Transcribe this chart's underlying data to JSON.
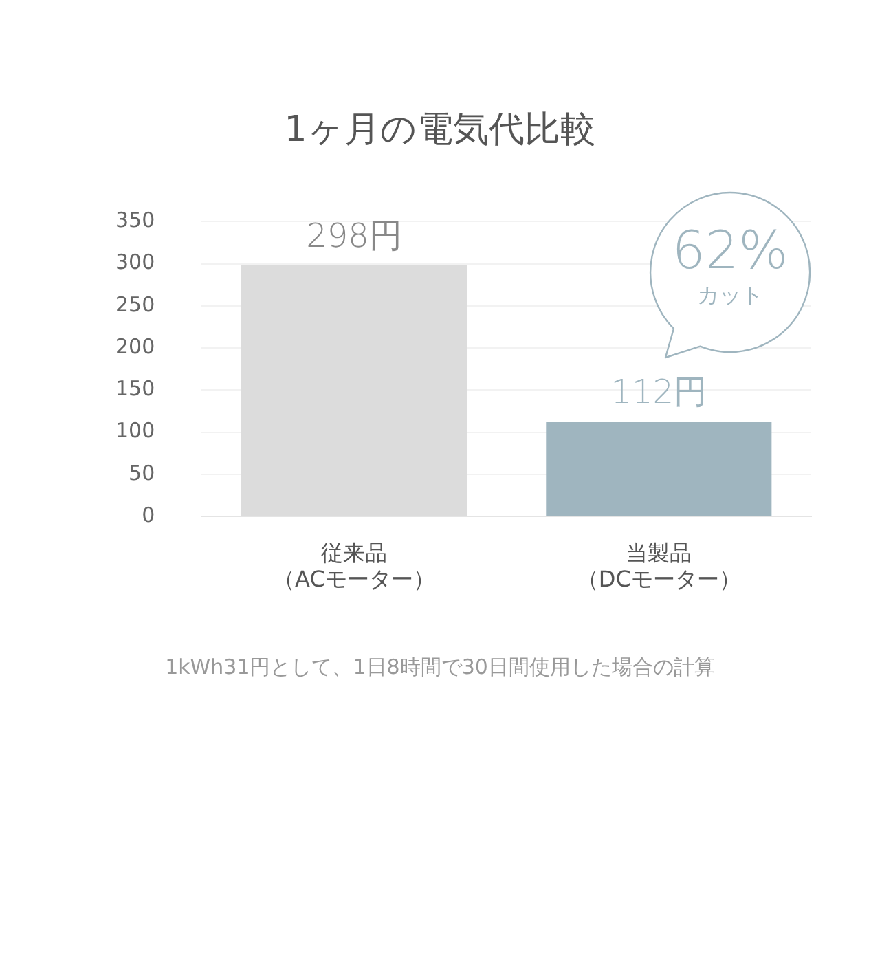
{
  "chart_data": {
    "type": "bar",
    "title": "1ヶ月の電気代比較",
    "categories": [
      "従来品（ACモーター）",
      "当製品（DCモーター）"
    ],
    "values": [
      298,
      112
    ],
    "colors": [
      "#dcdcdc",
      "#9fb5bf"
    ],
    "value_labels": [
      "298円",
      "112円"
    ],
    "ylim": [
      0,
      350
    ],
    "yticks": [
      0,
      50,
      100,
      150,
      200,
      250,
      300,
      350
    ],
    "grid": "y",
    "legend": false,
    "annotations": [
      "62%",
      "カット",
      "1kWh31円として、1日8時間で30日間使用した場合の計算"
    ]
  }
}
